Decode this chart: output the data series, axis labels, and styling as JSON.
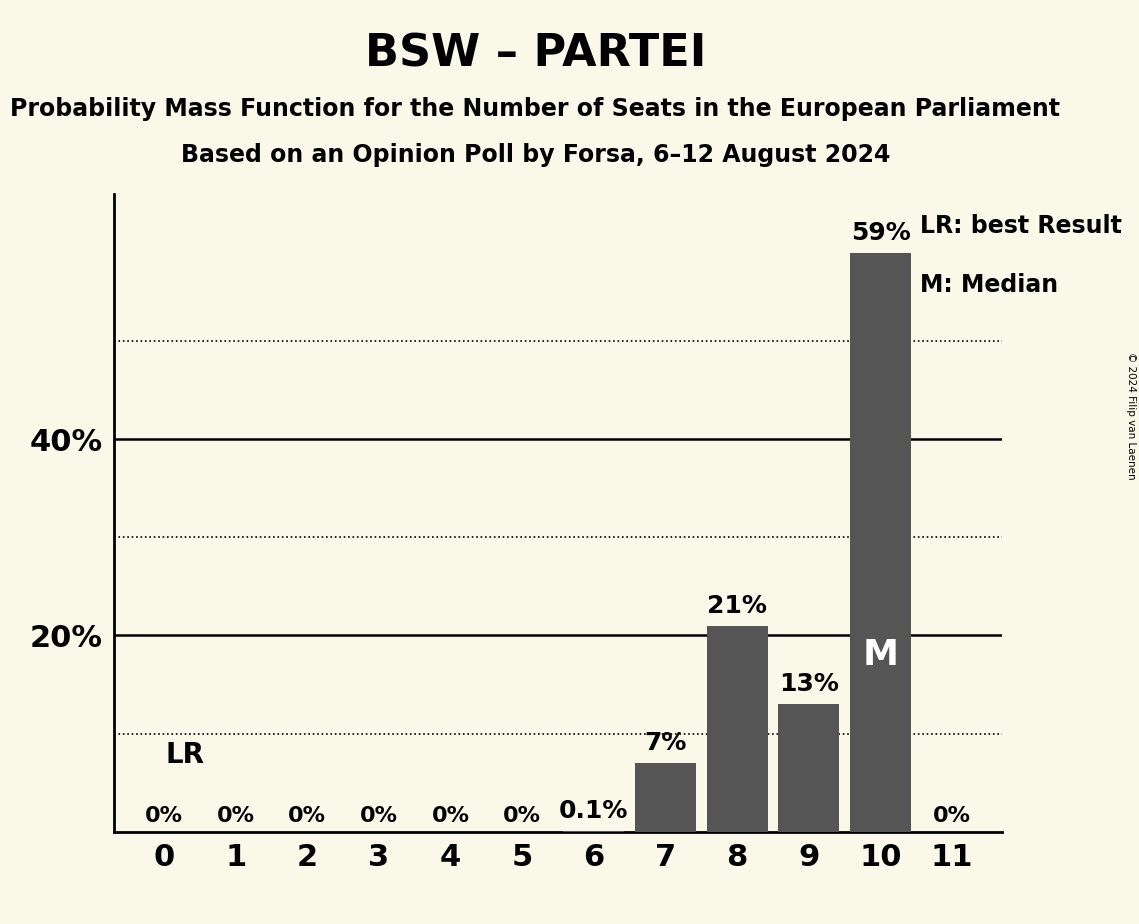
{
  "title": "BSW – PARTEI",
  "subtitle1": "Probability Mass Function for the Number of Seats in the European Parliament",
  "subtitle2": "Based on an Opinion Poll by Forsa, 6–12 August 2024",
  "copyright": "© 2024 Filip van Laenen",
  "categories": [
    0,
    1,
    2,
    3,
    4,
    5,
    6,
    7,
    8,
    9,
    10,
    11
  ],
  "values": [
    0.0,
    0.0,
    0.0,
    0.0,
    0.0,
    0.0,
    0.1,
    7.0,
    21.0,
    13.0,
    59.0,
    0.0
  ],
  "bar_color": "#555555",
  "background_color": "#faf8e8",
  "mode_index": 10,
  "median_index": 10,
  "label_mode": "LR",
  "label_median": "M",
  "legend_lr": "LR: best Result",
  "legend_m": "M: Median",
  "ylabel_ticks": [
    20,
    40
  ],
  "dotted_lines": [
    10,
    30,
    50
  ],
  "solid_lines": [
    20,
    40
  ],
  "ylim": [
    0,
    65
  ],
  "bar_labels": [
    "0%",
    "0%",
    "0%",
    "0%",
    "0%",
    "0%",
    "0.1%",
    "7%",
    "21%",
    "13%",
    "59%",
    "0%"
  ]
}
